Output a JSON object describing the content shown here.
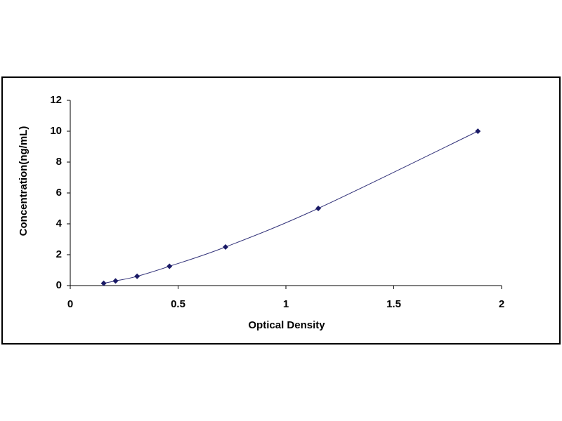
{
  "chart_data": {
    "type": "scatter",
    "x_label": "Optical Density",
    "y_label": "Concentration(ng/mL)",
    "x": [
      0.155,
      0.21,
      0.31,
      0.46,
      0.72,
      1.15,
      1.89
    ],
    "series": [
      {
        "color": "#1a1a66",
        "values": [
          0.15,
          0.3,
          0.6,
          1.25,
          2.5,
          5,
          10
        ]
      }
    ],
    "xlim": [
      0,
      2
    ],
    "xticks": [
      0,
      0.5,
      1,
      1.5,
      2
    ],
    "ylim": [
      0,
      12
    ],
    "yticks": [
      0,
      2,
      4,
      6,
      8,
      10,
      12
    ],
    "fit_line": true
  }
}
